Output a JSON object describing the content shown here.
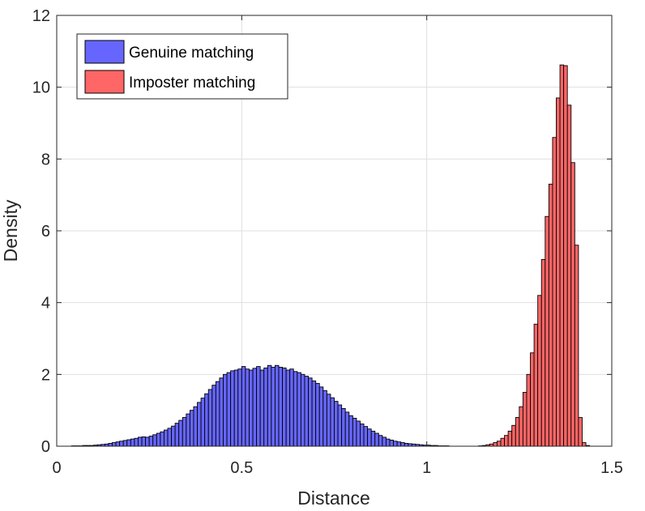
{
  "chart_data": {
    "type": "bar",
    "title": "",
    "xlabel": "Distance",
    "ylabel": "Density",
    "xlim": [
      0,
      1.5
    ],
    "ylim": [
      0,
      12
    ],
    "xticks": [
      "0",
      "0.5",
      "1",
      "1.5"
    ],
    "yticks": [
      "0",
      "2",
      "4",
      "6",
      "8",
      "10",
      "12"
    ],
    "grid": true,
    "legend_position": "top-left",
    "bin_width": 0.01,
    "series": [
      {
        "name": "Genuine matching",
        "color": "#6666ff",
        "bin_start": 0.04,
        "values": [
          0.01,
          0.01,
          0.01,
          0.02,
          0.02,
          0.02,
          0.03,
          0.04,
          0.05,
          0.06,
          0.08,
          0.1,
          0.12,
          0.14,
          0.16,
          0.18,
          0.2,
          0.22,
          0.25,
          0.26,
          0.25,
          0.28,
          0.32,
          0.36,
          0.4,
          0.45,
          0.5,
          0.56,
          0.64,
          0.72,
          0.8,
          0.9,
          1.0,
          1.1,
          1.22,
          1.34,
          1.46,
          1.58,
          1.7,
          1.8,
          1.9,
          2.0,
          2.05,
          2.1,
          2.12,
          2.15,
          2.22,
          2.15,
          2.12,
          2.17,
          2.22,
          2.12,
          2.18,
          2.25,
          2.2,
          2.25,
          2.2,
          2.18,
          2.12,
          2.15,
          2.08,
          2.05,
          2.0,
          1.95,
          1.9,
          1.82,
          1.75,
          1.65,
          1.55,
          1.45,
          1.35,
          1.25,
          1.15,
          1.05,
          0.95,
          0.85,
          0.78,
          0.7,
          0.62,
          0.55,
          0.48,
          0.42,
          0.36,
          0.3,
          0.25,
          0.2,
          0.17,
          0.14,
          0.12,
          0.1,
          0.08,
          0.07,
          0.06,
          0.05,
          0.04,
          0.03,
          0.03,
          0.02,
          0.02,
          0.01,
          0.01,
          0.01
        ]
      },
      {
        "name": "Imposter matching",
        "color": "#ff6666",
        "bin_start": 1.14,
        "values": [
          0.01,
          0.02,
          0.04,
          0.06,
          0.1,
          0.14,
          0.22,
          0.3,
          0.42,
          0.58,
          0.8,
          1.1,
          1.5,
          2.0,
          2.6,
          3.4,
          4.2,
          5.2,
          6.4,
          7.3,
          8.6,
          9.7,
          10.62,
          10.6,
          9.5,
          7.9,
          5.6,
          0.8,
          0.1,
          0.02
        ]
      }
    ]
  }
}
